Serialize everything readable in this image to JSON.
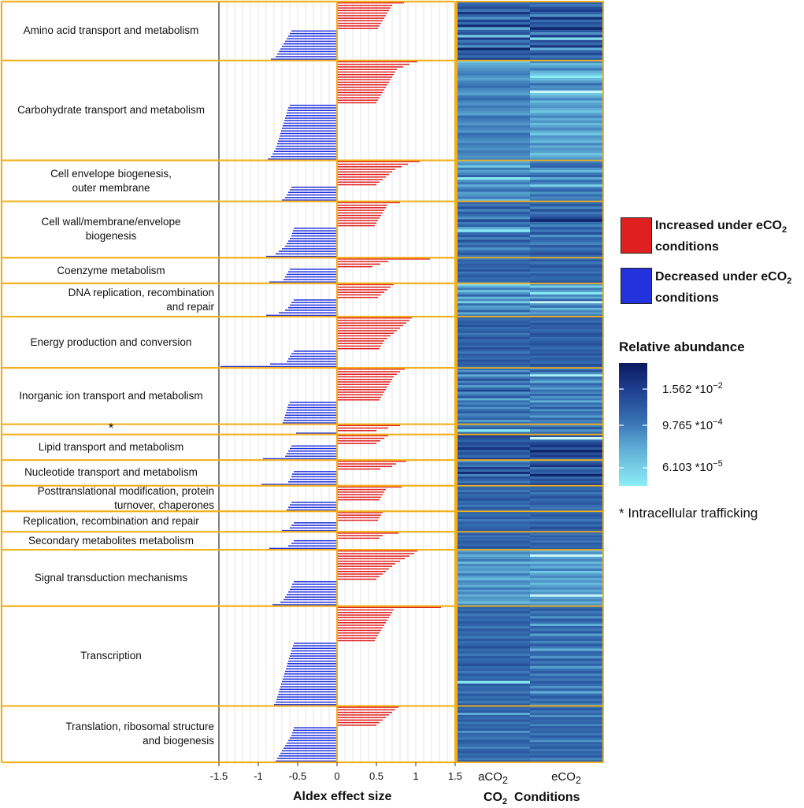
{
  "chart_data": {
    "type": "bar",
    "title": "",
    "xlabel": "Aldex effect size",
    "xlim": [
      -1.5,
      1.5
    ],
    "x_ticks": [
      "-1.5",
      "-1",
      "-0.5",
      "0",
      "0.5",
      "1",
      "1.5"
    ],
    "heatmap_xlabel": "Conditions",
    "heatmap_xlabel_prefix": "CO",
    "heatmap_xlabel_sub": "2",
    "heatmap_columns": [
      {
        "prefix": "aCO",
        "sub": "2"
      },
      {
        "prefix": "eCO",
        "sub": "2"
      }
    ],
    "categories": [
      {
        "label": "Amino acid transport and metabolism",
        "align": "center",
        "positive": [
          0.85,
          0.7,
          0.68,
          0.66,
          0.64,
          0.62,
          0.6,
          0.58,
          0.56,
          0.54,
          0.52
        ],
        "negative": [
          -0.58,
          -0.6,
          -0.62,
          -0.64,
          -0.66,
          -0.68,
          -0.7,
          -0.72,
          -0.74,
          -0.76,
          -0.78,
          -0.84
        ],
        "heat_a": [
          0.55,
          0.6,
          0.7,
          0.5,
          0.85,
          0.6,
          0.4,
          0.75,
          0.55,
          0.9,
          0.3,
          0.6,
          0.7,
          0.2,
          0.8,
          0.5,
          0.65,
          0.4,
          0.95,
          0.6,
          0.7,
          0.55,
          0.8
        ],
        "heat_e": [
          0.6,
          0.5,
          0.7,
          0.8,
          0.6,
          0.4,
          0.9,
          0.55,
          0.7,
          0.6,
          0.95,
          0.65,
          0.4,
          0.8,
          0.1,
          0.7,
          0.55,
          0.85,
          0.3,
          0.6,
          0.75,
          0.5,
          0.65
        ]
      },
      {
        "label": "Carbohydrate transport and metabolism",
        "align": "center",
        "positive": [
          1.02,
          0.92,
          0.84,
          0.76,
          0.74,
          0.72,
          0.7,
          0.68,
          0.66,
          0.64,
          0.62,
          0.6,
          0.58,
          0.56,
          0.54,
          0.52,
          0.5
        ],
        "negative": [
          -0.6,
          -0.62,
          -0.63,
          -0.64,
          -0.65,
          -0.66,
          -0.67,
          -0.68,
          -0.69,
          -0.7,
          -0.71,
          -0.72,
          -0.73,
          -0.74,
          -0.75,
          -0.76,
          -0.77,
          -0.78,
          -0.8,
          -0.82,
          -0.84,
          -0.88
        ],
        "heat_a": [
          0.2,
          0.3,
          0.35,
          0.4,
          0.45,
          0.5,
          0.4,
          0.35,
          0.45,
          0.5,
          0.55,
          0.45,
          0.4,
          0.35,
          0.5,
          0.55,
          0.45,
          0.4,
          0.5,
          0.45,
          0.4,
          0.35,
          0.55,
          0.5,
          0.45,
          0.4,
          0.5,
          0.45,
          0.4,
          0.55,
          0.5,
          0.45,
          0.4,
          0.5,
          0.45,
          0.4,
          0.5,
          0.45,
          0.4,
          0.45
        ],
        "heat_e": [
          0.45,
          0.25,
          0.35,
          0.5,
          0.3,
          0.2,
          0.05,
          0.25,
          0.35,
          0.55,
          0.4,
          0.45,
          0.02,
          0.2,
          0.3,
          0.45,
          0.25,
          0.35,
          0.4,
          0.3,
          0.2,
          0.35,
          0.45,
          0.3,
          0.4,
          0.25,
          0.35,
          0.45,
          0.3,
          0.2,
          0.4,
          0.35,
          0.25,
          0.45,
          0.3,
          0.4,
          0.35,
          0.2,
          0.3,
          0.4
        ]
      },
      {
        "label": "Cell envelope biogenesis,\nouter membrane",
        "align": "center",
        "positive": [
          1.05,
          0.9,
          0.82,
          0.74,
          0.7,
          0.66,
          0.62,
          0.58,
          0.54,
          0.5
        ],
        "negative": [
          -0.58,
          -0.6,
          -0.62,
          -0.64,
          -0.66,
          -0.7
        ],
        "heat_a": [
          0.3,
          0.4,
          0.2,
          0.5,
          0.35,
          0.45,
          0.6,
          0.05,
          0.4,
          0.5,
          0.3,
          0.45,
          0.55,
          0.35,
          0.4,
          0.5,
          0.25
        ],
        "heat_e": [
          0.45,
          0.55,
          0.6,
          0.4,
          0.25,
          0.5,
          0.6,
          0.3,
          0.55,
          0.45,
          0.15,
          0.5,
          0.6,
          0.4,
          0.55,
          0.45,
          0.5
        ]
      },
      {
        "label": "Cell wall/membrane/envelope\nbiogenesis",
        "align": "center",
        "positive": [
          0.8,
          0.64,
          0.62,
          0.6,
          0.58,
          0.56,
          0.54,
          0.52,
          0.5,
          0.48
        ],
        "negative": [
          -0.55,
          -0.56,
          -0.57,
          -0.58,
          -0.6,
          -0.62,
          -0.64,
          -0.66,
          -0.7,
          -0.74,
          -0.78,
          -0.9
        ],
        "heat_a": [
          0.6,
          0.5,
          0.7,
          0.45,
          0.65,
          0.55,
          0.4,
          0.75,
          0.5,
          0.6,
          0.3,
          0.05,
          0.55,
          0.65,
          0.45,
          0.7,
          0.5,
          0.6,
          0.4,
          0.55,
          0.65,
          0.5
        ],
        "heat_e": [
          0.55,
          0.65,
          0.45,
          0.7,
          0.5,
          0.6,
          0.75,
          0.95,
          0.55,
          0.45,
          0.65,
          0.5,
          0.7,
          0.4,
          0.6,
          0.55,
          0.45,
          0.65,
          0.5,
          0.6,
          0.7,
          0.55
        ]
      },
      {
        "label": "Coenzyme metabolism",
        "align": "center",
        "positive": [
          1.18,
          0.65,
          0.55,
          0.45
        ],
        "negative": [
          -0.6,
          -0.62,
          -0.64,
          -0.66,
          -0.68,
          -0.86
        ],
        "heat_a": [
          0.5,
          0.6,
          0.55,
          0.65,
          0.6,
          0.55,
          0.7,
          0.5,
          0.6,
          0.65,
          0.55,
          0.6,
          0.5
        ],
        "heat_e": [
          0.55,
          0.65,
          0.5,
          0.6,
          0.7,
          0.55,
          0.6,
          0.5,
          0.65,
          0.6,
          0.55,
          0.6,
          0.7
        ]
      },
      {
        "label": "DNA replication, recombination \nand repair",
        "align": "right",
        "positive": [
          0.72,
          0.68,
          0.64,
          0.6,
          0.56,
          0.52
        ],
        "negative": [
          -0.55,
          -0.58,
          -0.6,
          -0.62,
          -0.66,
          -0.74,
          -0.9
        ],
        "heat_a": [
          0.1,
          0.3,
          0.5,
          0.2,
          0.4,
          0.6,
          0.25,
          0.45,
          0.15,
          0.55,
          0.35,
          0.4,
          0.6,
          0.3,
          0.5
        ],
        "heat_e": [
          0.4,
          0.15,
          0.5,
          0.35,
          0.05,
          0.45,
          0.3,
          0.6,
          0.02,
          0.4,
          0.55,
          0.25,
          0.45,
          0.35,
          0.5
        ]
      },
      {
        "label": "Energy production and conversion",
        "align": "center",
        "positive": [
          0.95,
          0.92,
          0.88,
          0.84,
          0.8,
          0.76,
          0.72,
          0.68,
          0.64,
          0.6,
          0.58,
          0.56,
          0.54
        ],
        "negative": [
          -0.55,
          -0.58,
          -0.6,
          -0.62,
          -0.64,
          -0.85,
          -1.48
        ],
        "heat_a": [
          0.6,
          0.55,
          0.65,
          0.6,
          0.7,
          0.55,
          0.6,
          0.65,
          0.5,
          0.6,
          0.7,
          0.55,
          0.6,
          0.65,
          0.55,
          0.7,
          0.6,
          0.5,
          0.65,
          0.6,
          0.55,
          0.7,
          0.6,
          0.65,
          0.55
        ],
        "heat_e": [
          0.65,
          0.6,
          0.55,
          0.7,
          0.6,
          0.65,
          0.55,
          0.6,
          0.7,
          0.65,
          0.55,
          0.6,
          0.65,
          0.7,
          0.6,
          0.55,
          0.65,
          0.6,
          0.7,
          0.55,
          0.65,
          0.6,
          0.55,
          0.7,
          0.65
        ]
      },
      {
        "label": "Inorganic ion transport and metabolism",
        "align": "center",
        "positive": [
          0.86,
          0.8,
          0.76,
          0.72,
          0.7,
          0.68,
          0.66,
          0.64,
          0.62,
          0.6,
          0.58,
          0.56,
          0.54
        ],
        "negative": [
          -0.6,
          -0.62,
          -0.63,
          -0.64,
          -0.65,
          -0.66,
          -0.67,
          -0.68,
          -0.69
        ],
        "heat_a": [
          0.55,
          0.4,
          0.65,
          0.3,
          0.5,
          0.7,
          0.45,
          0.6,
          0.35,
          0.55,
          0.75,
          0.4,
          0.5,
          0.65,
          0.3,
          0.55,
          0.45,
          0.6,
          0.4,
          0.55,
          0.65,
          0.45,
          0.5,
          0.6,
          0.35,
          0.55
        ],
        "heat_e": [
          0.5,
          0.65,
          0.4,
          0.03,
          0.55,
          0.45,
          0.3,
          0.6,
          0.5,
          0.35,
          0.55,
          0.45,
          0.6,
          0.4,
          0.5,
          0.3,
          0.55,
          0.45,
          0.65,
          0.4,
          0.55,
          0.5,
          0.35,
          0.6,
          0.45,
          0.5
        ]
      },
      {
        "label": "*",
        "align": "center",
        "positive": [
          0.8,
          0.65,
          0.5
        ],
        "negative": [
          -0.52
        ],
        "heat_a": [
          0.5,
          0.6,
          0.05,
          0.55
        ],
        "heat_e": [
          0.45,
          0.65,
          0.4,
          0.55
        ]
      },
      {
        "label": "Lipid transport and metabolism",
        "align": "center",
        "positive": [
          0.65,
          0.6,
          0.55,
          0.5
        ],
        "negative": [
          -0.58,
          -0.6,
          -0.62,
          -0.64,
          -0.66,
          -0.94
        ],
        "heat_a": [
          0.8,
          0.7,
          0.6,
          0.75,
          0.65,
          0.85,
          0.6,
          0.7,
          0.55,
          0.75
        ],
        "heat_e": [
          0.7,
          0.02,
          0.6,
          0.75,
          0.85,
          0.65,
          0.95,
          0.7,
          0.8,
          0.6
        ]
      },
      {
        "label": "Nucleotide transport and metabolism",
        "align": "center",
        "positive": [
          0.88,
          0.75,
          0.7,
          0.55
        ],
        "negative": [
          -0.55,
          -0.57,
          -0.58,
          -0.6,
          -0.62,
          -0.96
        ],
        "heat_a": [
          0.4,
          0.6,
          0.5,
          0.8,
          0.55,
          0.9,
          0.45,
          0.7,
          0.6,
          0.5,
          0.75
        ],
        "heat_e": [
          0.55,
          0.7,
          0.85,
          0.5,
          0.65,
          0.6,
          0.95,
          0.55,
          0.7,
          0.6,
          0.8
        ]
      },
      {
        "label": "Posttranslational modification, protein\nturnover, chaperones",
        "align": "right",
        "positive": [
          0.82,
          0.62,
          0.6,
          0.58,
          0.56,
          0.54
        ],
        "negative": [
          -0.58,
          -0.6,
          -0.62,
          -0.64
        ],
        "heat_a": [
          0.55,
          0.6,
          0.5,
          0.65,
          0.55,
          0.6,
          0.7,
          0.55,
          0.6,
          0.5,
          0.65,
          0.55
        ],
        "heat_e": [
          0.6,
          0.55,
          0.65,
          0.5,
          0.6,
          0.7,
          0.55,
          0.6,
          0.65,
          0.55,
          0.5,
          0.6
        ]
      },
      {
        "label": "Replication, recombination and repair",
        "align": "center",
        "positive": [
          0.58,
          0.56,
          0.54,
          0.52
        ],
        "negative": [
          -0.55,
          -0.58,
          -0.6,
          -0.7
        ],
        "heat_a": [
          0.6,
          0.55,
          0.65,
          0.5,
          0.6,
          0.55,
          0.6,
          0.65
        ],
        "heat_e": [
          0.55,
          0.65,
          0.6,
          0.5,
          0.65,
          0.55,
          0.7,
          0.6
        ]
      },
      {
        "label": "Secondary metabolites metabolism",
        "align": "center",
        "positive": [
          0.78,
          0.58,
          0.54
        ],
        "negative": [
          -0.55,
          -0.58,
          -0.62,
          -0.86
        ],
        "heat_a": [
          0.55,
          0.65,
          0.5,
          0.6,
          0.55,
          0.65,
          0.6,
          0.55,
          0.7,
          0.6
        ],
        "heat_e": [
          0.6,
          0.5,
          0.65,
          0.55,
          0.6,
          0.5,
          0.65,
          0.6,
          0.55,
          0.65
        ]
      },
      {
        "label": "Signal transduction mechanisms",
        "align": "center",
        "positive": [
          1.02,
          0.98,
          0.92,
          0.86,
          0.8,
          0.74,
          0.7,
          0.66,
          0.62,
          0.58,
          0.54,
          0.5
        ],
        "negative": [
          -0.55,
          -0.57,
          -0.58,
          -0.6,
          -0.62,
          -0.64,
          -0.66,
          -0.68,
          -0.72,
          -0.82
        ],
        "heat_a": [
          0.35,
          0.45,
          0.3,
          0.4,
          0.5,
          0.25,
          0.45,
          0.35,
          0.4,
          0.3,
          0.5,
          0.35,
          0.25,
          0.45,
          0.4,
          0.3,
          0.5,
          0.35,
          0.45,
          0.3,
          0.4,
          0.35,
          0.25,
          0.45
        ],
        "heat_e": [
          0.3,
          0.4,
          0.02,
          0.35,
          0.45,
          0.25,
          0.4,
          0.3,
          0.5,
          0.2,
          0.35,
          0.45,
          0.3,
          0.4,
          0.25,
          0.35,
          0.45,
          0.3,
          0.4,
          0.02,
          0.35,
          0.45,
          0.3,
          0.4
        ]
      },
      {
        "label": "Transcription",
        "align": "center",
        "positive": [
          1.32,
          0.72,
          0.7,
          0.68,
          0.66,
          0.64,
          0.62,
          0.6,
          0.58,
          0.56,
          0.54,
          0.52,
          0.5,
          0.48
        ],
        "negative": [
          -0.55,
          -0.56,
          -0.57,
          -0.58,
          -0.59,
          -0.6,
          -0.61,
          -0.62,
          -0.63,
          -0.64,
          -0.65,
          -0.66,
          -0.67,
          -0.68,
          -0.69,
          -0.7,
          -0.71,
          -0.72,
          -0.73,
          -0.74,
          -0.75,
          -0.76,
          -0.77,
          -0.78,
          -0.8
        ],
        "heat_a": [
          0.6,
          0.55,
          0.65,
          0.5,
          0.6,
          0.55,
          0.65,
          0.6,
          0.5,
          0.65,
          0.55,
          0.6,
          0.5,
          0.65,
          0.55,
          0.6,
          0.7,
          0.55,
          0.6,
          0.5,
          0.65,
          0.55,
          0.6,
          0.7,
          0.55,
          0.6,
          0.5,
          0.65,
          0.55,
          0.6,
          0.05,
          0.65,
          0.55,
          0.6,
          0.5,
          0.65,
          0.55,
          0.6,
          0.5,
          0.65
        ],
        "heat_e": [
          0.55,
          0.65,
          0.5,
          0.6,
          0.4,
          0.65,
          0.55,
          0.3,
          0.6,
          0.5,
          0.65,
          0.35,
          0.55,
          0.6,
          0.45,
          0.65,
          0.5,
          0.3,
          0.6,
          0.55,
          0.4,
          0.65,
          0.5,
          0.6,
          0.35,
          0.55,
          0.65,
          0.45,
          0.6,
          0.5,
          0.65,
          0.55,
          0.4,
          0.6,
          0.3,
          0.55,
          0.65,
          0.5,
          0.6,
          0.45
        ]
      },
      {
        "label": "Translation, ribosomal structure\nand biogenesis",
        "align": "right",
        "positive": [
          0.78,
          0.74,
          0.7,
          0.66,
          0.62,
          0.58,
          0.54,
          0.5
        ],
        "negative": [
          -0.55,
          -0.56,
          -0.57,
          -0.58,
          -0.6,
          -0.62,
          -0.64,
          -0.66,
          -0.68,
          -0.7,
          -0.72,
          -0.74,
          -0.76,
          -0.78
        ],
        "heat_a": [
          0.6,
          0.55,
          0.65,
          0.3,
          0.6,
          0.55,
          0.65,
          0.5,
          0.6,
          0.55,
          0.65,
          0.4,
          0.6,
          0.55,
          0.5,
          0.65,
          0.6,
          0.55,
          0.45,
          0.6,
          0.65,
          0.55,
          0.6,
          0.5,
          0.65
        ],
        "heat_e": [
          0.55,
          0.65,
          0.5,
          0.6,
          0.4,
          0.65,
          0.55,
          0.6,
          0.45,
          0.65,
          0.55,
          0.6,
          0.5,
          0.65,
          0.55,
          0.4,
          0.6,
          0.55,
          0.65,
          0.5,
          0.6,
          0.55,
          0.65,
          0.45,
          0.6
        ]
      }
    ]
  },
  "legend": {
    "increased": {
      "pre": "Increased under eCO",
      "sub": "2",
      "post": "conditions",
      "color": "#e01f1f"
    },
    "decreased": {
      "pre": "Decreased under eCO",
      "sub": "2",
      "post": "conditions",
      "color": "#2233dd"
    }
  },
  "colorbar": {
    "title": "Relative abundance",
    "ticks": [
      {
        "mantissa": "1.562 *10",
        "exponent": "−2"
      },
      {
        "mantissa": "9.765 *10",
        "exponent": "−4"
      },
      {
        "mantissa": "6.103 *10",
        "exponent": "−5"
      }
    ]
  },
  "footnote": "* Intracellular trafficking",
  "colors": {
    "orange": "#f2b01e",
    "red": "#e01f1f",
    "blue": "#2233dd",
    "heat_low": "#8ceef5",
    "heat_high": "#0a1a5e"
  }
}
